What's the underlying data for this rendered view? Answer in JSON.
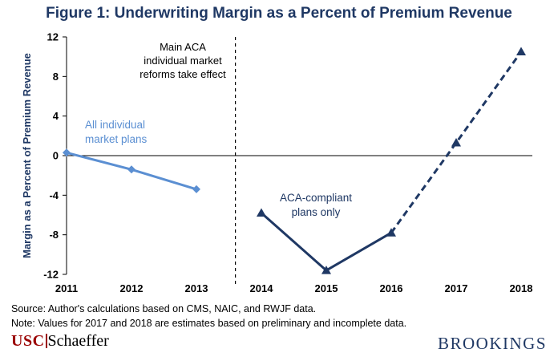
{
  "chart_data": {
    "type": "line",
    "title": "Figure 1: Underwriting Margin as a Percent of Premium Revenue",
    "ylabel": "Margin as a Percent of Premium Revenue",
    "xlabel": "",
    "x": [
      2011,
      2012,
      2013,
      2014,
      2015,
      2016,
      2017,
      2018
    ],
    "x_tick_labels": [
      "2011",
      "2012",
      "2013",
      "2014",
      "2015",
      "2016",
      "2017",
      "2018"
    ],
    "ylim": [
      -12,
      12
    ],
    "y_ticks": [
      12,
      8,
      4,
      0,
      -4,
      -8,
      -12
    ],
    "y_tick_labels": [
      "12",
      "8",
      "4",
      "0",
      "-4",
      "-8",
      "-12"
    ],
    "grid": false,
    "series": [
      {
        "name": "All individual market plans",
        "label_lines": [
          "All individual",
          "market plans"
        ],
        "color": "#5b8fd2",
        "marker": "diamond",
        "points": [
          [
            2011,
            0.3
          ],
          [
            2012,
            -1.4
          ],
          [
            2013,
            -3.4
          ]
        ],
        "estimated_points": []
      },
      {
        "name": "ACA-compliant plans only",
        "label_lines": [
          "ACA-compliant",
          "plans only"
        ],
        "color": "#1f3864",
        "marker": "triangle",
        "points": [
          [
            2014,
            -5.8
          ],
          [
            2015,
            -11.6
          ],
          [
            2016,
            -7.8
          ]
        ],
        "estimated_points": [
          [
            2017,
            1.3
          ],
          [
            2018,
            10.5
          ]
        ]
      }
    ],
    "annotations": [
      {
        "x": 2013.6,
        "text_lines": [
          "Main ACA",
          "individual market",
          "reforms take effect"
        ]
      }
    ]
  },
  "footer": {
    "source": "Source: Author's calculations based on CMS, NAIC, and RWJF data.",
    "note": "Note: Values for 2017 and 2018 are estimates based on preliminary and incomplete data.",
    "logo_left_main": "USC",
    "logo_left_sub": "Schaeffer",
    "logo_right": "BROOKINGS"
  }
}
